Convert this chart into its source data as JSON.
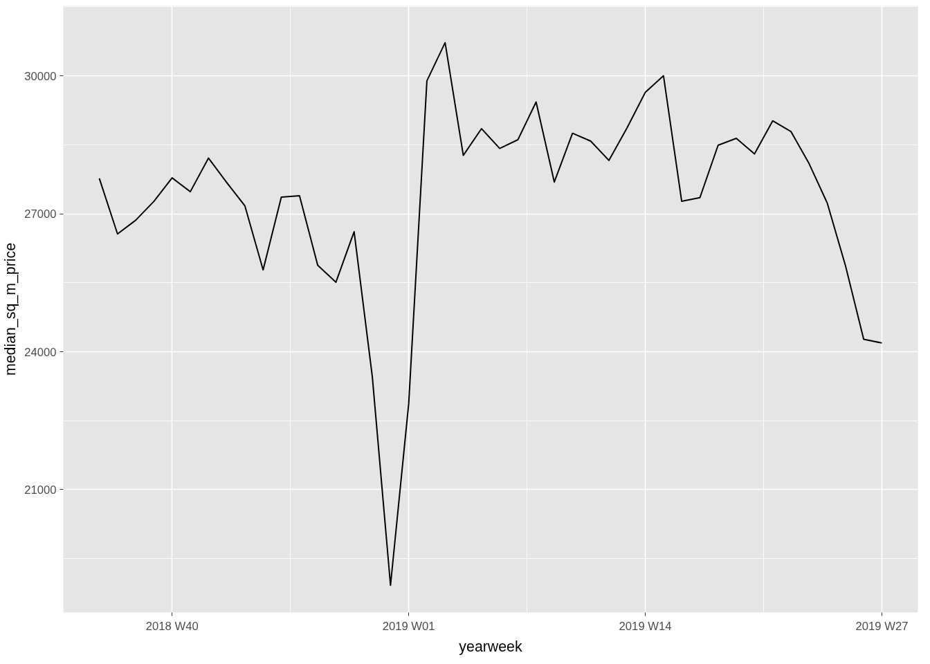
{
  "chart_data": {
    "type": "line",
    "xlabel": "yearweek",
    "ylabel": "median_sq_m_price",
    "categories": [
      null,
      null,
      null,
      null,
      "2018 W40",
      null,
      null,
      null,
      null,
      null,
      null,
      null,
      null,
      null,
      null,
      null,
      null,
      "2019 W01",
      null,
      null,
      null,
      null,
      null,
      null,
      null,
      null,
      null,
      null,
      null,
      null,
      "2019 W14",
      null,
      null,
      null,
      null,
      null,
      null,
      null,
      null,
      null,
      null,
      null,
      null,
      "2019 W27"
    ],
    "series": [
      {
        "color": "#000000",
        "values": [
          27770,
          26560,
          26860,
          27270,
          27780,
          27480,
          28210,
          27680,
          27170,
          25780,
          27360,
          27390,
          25880,
          25510,
          26610,
          23460,
          18920,
          22870,
          29890,
          30720,
          28270,
          28850,
          28420,
          28610,
          29430,
          27690,
          28750,
          28580,
          28160,
          28870,
          29640,
          30000,
          27270,
          27350,
          28490,
          28640,
          28300,
          29020,
          28790,
          28090,
          27230,
          25870,
          24270,
          24190
        ]
      }
    ],
    "ylim": [
      18330,
      31520
    ],
    "yticks": [
      21000,
      24000,
      27000,
      30000
    ],
    "grid": true,
    "marker": "none",
    "line_style": "solid"
  }
}
